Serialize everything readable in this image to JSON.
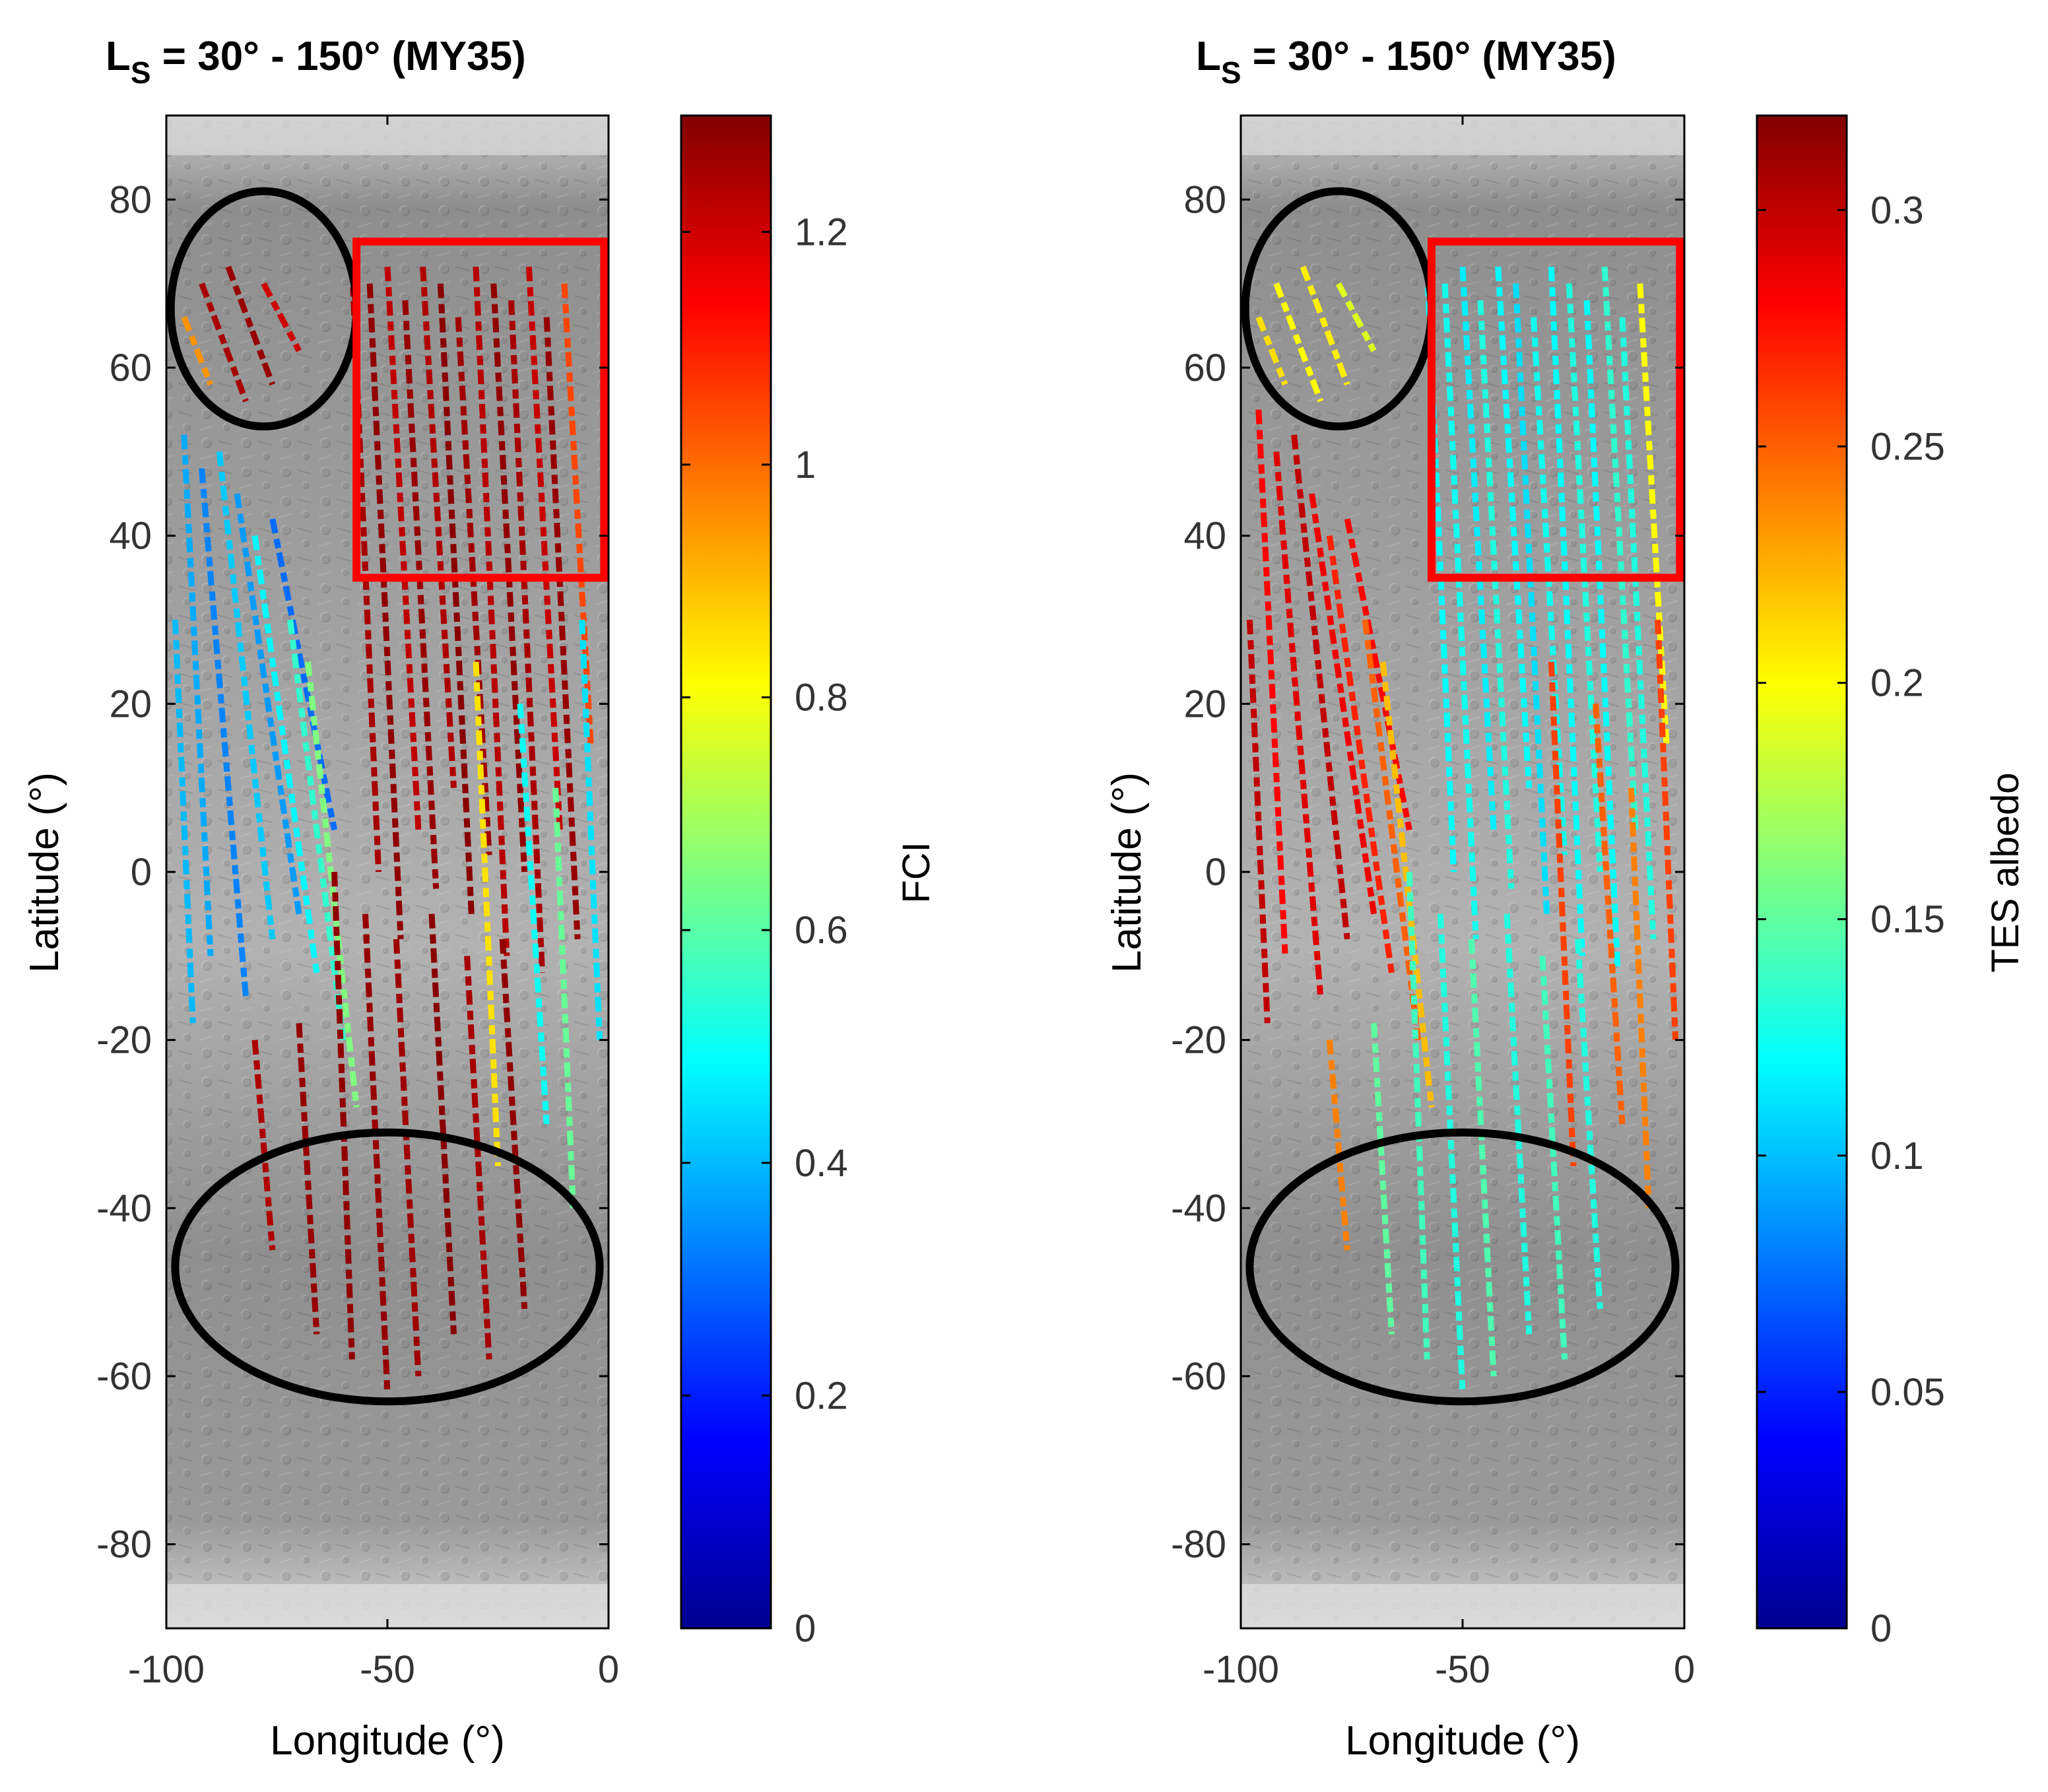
{
  "figure": {
    "panels": [
      {
        "title_prefix": "L",
        "title_sub": "S",
        "title_rest": " = 30° - 150° (MY35)",
        "xlabel": "Longitude (°)",
        "ylabel": "Latitude (°)",
        "colorbar_label": "FCI"
      },
      {
        "title_prefix": "L",
        "title_sub": "S",
        "title_rest": " = 30° - 150° (MY35)",
        "xlabel": "Longitude (°)",
        "ylabel": "Latitude (°)",
        "colorbar_label": "TES albedo"
      }
    ]
  },
  "chart_data": [
    {
      "type": "scatter",
      "title": "LS = 30° - 150° (MY35)",
      "xlabel": "Longitude (°)",
      "ylabel": "Latitude (°)",
      "xlim": [
        -100,
        0
      ],
      "ylim": [
        -90,
        90
      ],
      "x_ticks": [
        -100,
        -50,
        0
      ],
      "y_ticks": [
        80,
        60,
        40,
        20,
        0,
        -20,
        -40,
        -60,
        -80
      ],
      "basemap": "grayscale shaded-relief Mars surface",
      "colorbar": {
        "label": "FCI",
        "range": [
          0,
          1.3
        ],
        "ticks": [
          0,
          0.2,
          0.4,
          0.6,
          0.8,
          1,
          1.2
        ],
        "colormap": "jet"
      },
      "tracks": [
        {
          "lon_start": -96,
          "lat_start": 52,
          "lon_end": -90,
          "lat_end": -10,
          "value": 0.38
        },
        {
          "lon_start": -92,
          "lat_start": 48,
          "lon_end": -82,
          "lat_end": -15,
          "value": 0.33
        },
        {
          "lon_start": -88,
          "lat_start": 50,
          "lon_end": -76,
          "lat_end": -8,
          "value": 0.42
        },
        {
          "lon_start": -84,
          "lat_start": 45,
          "lon_end": -70,
          "lat_end": -5,
          "value": 0.36
        },
        {
          "lon_start": -80,
          "lat_start": 40,
          "lon_end": -66,
          "lat_end": -12,
          "value": 0.48
        },
        {
          "lon_start": -76,
          "lat_start": 42,
          "lon_end": -62,
          "lat_end": 5,
          "value": 0.3
        },
        {
          "lon_start": -72,
          "lat_start": 30,
          "lon_end": -60,
          "lat_end": -20,
          "value": 0.55
        },
        {
          "lon_start": -98,
          "lat_start": 30,
          "lon_end": -94,
          "lat_end": -18,
          "value": 0.4
        },
        {
          "lon_start": -68,
          "lat_start": 25,
          "lon_end": -57,
          "lat_end": -28,
          "value": 0.65
        },
        {
          "lon_start": -58,
          "lat_start": 72,
          "lon_end": -52,
          "lat_end": 0,
          "value": 1.25
        },
        {
          "lon_start": -54,
          "lat_start": 70,
          "lon_end": -47,
          "lat_end": -8,
          "value": 1.28
        },
        {
          "lon_start": -50,
          "lat_start": 72,
          "lon_end": -43,
          "lat_end": 5,
          "value": 1.22
        },
        {
          "lon_start": -46,
          "lat_start": 68,
          "lon_end": -39,
          "lat_end": -2,
          "value": 1.27
        },
        {
          "lon_start": -42,
          "lat_start": 72,
          "lon_end": -35,
          "lat_end": 10,
          "value": 1.24
        },
        {
          "lon_start": -38,
          "lat_start": 70,
          "lon_end": -31,
          "lat_end": -5,
          "value": 1.29
        },
        {
          "lon_start": -34,
          "lat_start": 66,
          "lon_end": -27,
          "lat_end": 2,
          "value": 1.26
        },
        {
          "lon_start": -30,
          "lat_start": 72,
          "lon_end": -23,
          "lat_end": -10,
          "value": 1.23
        },
        {
          "lon_start": -26,
          "lat_start": 70,
          "lon_end": -19,
          "lat_end": 0,
          "value": 1.28
        },
        {
          "lon_start": -22,
          "lat_start": 68,
          "lon_end": -15,
          "lat_end": -12,
          "value": 1.25
        },
        {
          "lon_start": -18,
          "lat_start": 72,
          "lon_end": -11,
          "lat_end": 5,
          "value": 1.21
        },
        {
          "lon_start": -14,
          "lat_start": 66,
          "lon_end": -7,
          "lat_end": -8,
          "value": 1.27
        },
        {
          "lon_start": -10,
          "lat_start": 70,
          "lon_end": -4,
          "lat_end": 15,
          "value": 1.05
        },
        {
          "lon_start": -62,
          "lat_start": 0,
          "lon_end": -58,
          "lat_end": -58,
          "value": 1.28
        },
        {
          "lon_start": -55,
          "lat_start": -5,
          "lon_end": -50,
          "lat_end": -62,
          "value": 1.27
        },
        {
          "lon_start": -48,
          "lat_start": -8,
          "lon_end": -43,
          "lat_end": -60,
          "value": 1.26
        },
        {
          "lon_start": -40,
          "lat_start": -5,
          "lon_end": -35,
          "lat_end": -55,
          "value": 1.29
        },
        {
          "lon_start": -32,
          "lat_start": -10,
          "lon_end": -27,
          "lat_end": -58,
          "value": 1.25
        },
        {
          "lon_start": -24,
          "lat_start": -8,
          "lon_end": -19,
          "lat_end": -52,
          "value": 1.28
        },
        {
          "lon_start": -70,
          "lat_start": -18,
          "lon_end": -66,
          "lat_end": -55,
          "value": 1.27
        },
        {
          "lon_start": -80,
          "lat_start": -20,
          "lon_end": -76,
          "lat_end": -45,
          "value": 1.24
        },
        {
          "lon_start": -92,
          "lat_start": 70,
          "lon_end": -82,
          "lat_end": 56,
          "value": 1.25
        },
        {
          "lon_start": -86,
          "lat_start": 72,
          "lon_end": -76,
          "lat_end": 58,
          "value": 1.27
        },
        {
          "lon_start": -78,
          "lat_start": 70,
          "lon_end": -70,
          "lat_end": 62,
          "value": 1.2
        },
        {
          "lon_start": -96,
          "lat_start": 66,
          "lon_end": -90,
          "lat_end": 58,
          "value": 0.95
        },
        {
          "lon_start": -20,
          "lat_start": 20,
          "lon_end": -14,
          "lat_end": -30,
          "value": 0.5
        },
        {
          "lon_start": -12,
          "lat_start": 10,
          "lon_end": -8,
          "lat_end": -40,
          "value": 0.62
        },
        {
          "lon_start": -6,
          "lat_start": 30,
          "lon_end": -2,
          "lat_end": -20,
          "value": 0.45
        },
        {
          "lon_start": -30,
          "lat_start": 25,
          "lon_end": -25,
          "lat_end": -35,
          "value": 0.85
        }
      ],
      "annotations": [
        {
          "shape": "ellipse",
          "color": "black",
          "center": [
            -78,
            67
          ],
          "half_axes": [
            21,
            14
          ]
        },
        {
          "shape": "rectangle",
          "color": "red",
          "lon": [
            -57,
            -1
          ],
          "lat": [
            35,
            75
          ]
        },
        {
          "shape": "ellipse",
          "color": "black",
          "center": [
            -50,
            -47
          ],
          "half_axes": [
            48,
            16
          ]
        }
      ]
    },
    {
      "type": "scatter",
      "title": "LS = 30° - 150° (MY35)",
      "xlabel": "Longitude (°)",
      "ylabel": "Latitude (°)",
      "xlim": [
        -100,
        0
      ],
      "ylim": [
        -90,
        90
      ],
      "x_ticks": [
        -100,
        -50,
        0
      ],
      "y_ticks": [
        80,
        60,
        40,
        20,
        0,
        -20,
        -40,
        -60,
        -80
      ],
      "basemap": "grayscale shaded-relief Mars surface",
      "colorbar": {
        "label": "TES albedo",
        "range": [
          0,
          0.32
        ],
        "ticks": [
          0,
          0.05,
          0.1,
          0.15,
          0.2,
          0.25,
          0.3
        ],
        "colormap": "jet"
      },
      "tracks": [
        {
          "lon_start": -96,
          "lat_start": 55,
          "lon_end": -90,
          "lat_end": -10,
          "value": 0.28
        },
        {
          "lon_start": -92,
          "lat_start": 50,
          "lon_end": -82,
          "lat_end": -15,
          "value": 0.29
        },
        {
          "lon_start": -88,
          "lat_start": 52,
          "lon_end": -76,
          "lat_end": -8,
          "value": 0.3
        },
        {
          "lon_start": -84,
          "lat_start": 45,
          "lon_end": -70,
          "lat_end": -5,
          "value": 0.285
        },
        {
          "lon_start": -80,
          "lat_start": 40,
          "lon_end": -66,
          "lat_end": -12,
          "value": 0.27
        },
        {
          "lon_start": -76,
          "lat_start": 42,
          "lon_end": -62,
          "lat_end": 5,
          "value": 0.28
        },
        {
          "lon_start": -72,
          "lat_start": 30,
          "lon_end": -60,
          "lat_end": -20,
          "value": 0.25
        },
        {
          "lon_start": -98,
          "lat_start": 30,
          "lon_end": -94,
          "lat_end": -18,
          "value": 0.3
        },
        {
          "lon_start": -68,
          "lat_start": 25,
          "lon_end": -57,
          "lat_end": -28,
          "value": 0.22
        },
        {
          "lon_start": -58,
          "lat_start": 72,
          "lon_end": -52,
          "lat_end": 0,
          "value": 0.12
        },
        {
          "lon_start": -54,
          "lat_start": 70,
          "lon_end": -47,
          "lat_end": -8,
          "value": 0.125
        },
        {
          "lon_start": -50,
          "lat_start": 72,
          "lon_end": -43,
          "lat_end": 5,
          "value": 0.115
        },
        {
          "lon_start": -46,
          "lat_start": 68,
          "lon_end": -39,
          "lat_end": -2,
          "value": 0.13
        },
        {
          "lon_start": -42,
          "lat_start": 72,
          "lon_end": -35,
          "lat_end": 10,
          "value": 0.12
        },
        {
          "lon_start": -38,
          "lat_start": 70,
          "lon_end": -31,
          "lat_end": -5,
          "value": 0.11
        },
        {
          "lon_start": -34,
          "lat_start": 66,
          "lon_end": -27,
          "lat_end": 2,
          "value": 0.125
        },
        {
          "lon_start": -30,
          "lat_start": 72,
          "lon_end": -23,
          "lat_end": -10,
          "value": 0.12
        },
        {
          "lon_start": -26,
          "lat_start": 70,
          "lon_end": -19,
          "lat_end": 0,
          "value": 0.13
        },
        {
          "lon_start": -22,
          "lat_start": 68,
          "lon_end": -15,
          "lat_end": -12,
          "value": 0.12
        },
        {
          "lon_start": -18,
          "lat_start": 72,
          "lon_end": -11,
          "lat_end": 5,
          "value": 0.135
        },
        {
          "lon_start": -14,
          "lat_start": 66,
          "lon_end": -7,
          "lat_end": -8,
          "value": 0.13
        },
        {
          "lon_start": -10,
          "lat_start": 70,
          "lon_end": -4,
          "lat_end": 15,
          "value": 0.2
        },
        {
          "lon_start": -62,
          "lat_start": 0,
          "lon_end": -58,
          "lat_end": -58,
          "value": 0.14
        },
        {
          "lon_start": -55,
          "lat_start": -5,
          "lon_end": -50,
          "lat_end": -62,
          "value": 0.13
        },
        {
          "lon_start": -48,
          "lat_start": -8,
          "lon_end": -43,
          "lat_end": -60,
          "value": 0.145
        },
        {
          "lon_start": -40,
          "lat_start": -5,
          "lon_end": -35,
          "lat_end": -55,
          "value": 0.13
        },
        {
          "lon_start": -32,
          "lat_start": -10,
          "lon_end": -27,
          "lat_end": -58,
          "value": 0.14
        },
        {
          "lon_start": -24,
          "lat_start": -8,
          "lon_end": -19,
          "lat_end": -52,
          "value": 0.13
        },
        {
          "lon_start": -70,
          "lat_start": -18,
          "lon_end": -66,
          "lat_end": -55,
          "value": 0.15
        },
        {
          "lon_start": -80,
          "lat_start": -20,
          "lon_end": -76,
          "lat_end": -45,
          "value": 0.24
        },
        {
          "lon_start": -92,
          "lat_start": 70,
          "lon_end": -82,
          "lat_end": 56,
          "value": 0.2
        },
        {
          "lon_start": -86,
          "lat_start": 72,
          "lon_end": -76,
          "lat_end": 58,
          "value": 0.205
        },
        {
          "lon_start": -78,
          "lat_start": 70,
          "lon_end": -70,
          "lat_end": 62,
          "value": 0.19
        },
        {
          "lon_start": -96,
          "lat_start": 66,
          "lon_end": -90,
          "lat_end": 58,
          "value": 0.21
        },
        {
          "lon_start": -20,
          "lat_start": 20,
          "lon_end": -14,
          "lat_end": -30,
          "value": 0.25
        },
        {
          "lon_start": -12,
          "lat_start": 10,
          "lon_end": -8,
          "lat_end": -40,
          "value": 0.24
        },
        {
          "lon_start": -6,
          "lat_start": 30,
          "lon_end": -2,
          "lat_end": -20,
          "value": 0.26
        },
        {
          "lon_start": -30,
          "lat_start": 25,
          "lon_end": -25,
          "lat_end": -35,
          "value": 0.26
        }
      ],
      "annotations": [
        {
          "shape": "ellipse",
          "color": "black",
          "center": [
            -78,
            67
          ],
          "half_axes": [
            21,
            14
          ]
        },
        {
          "shape": "rectangle",
          "color": "red",
          "lon": [
            -57,
            -1
          ],
          "lat": [
            35,
            75
          ]
        },
        {
          "shape": "ellipse",
          "color": "black",
          "center": [
            -50,
            -47
          ],
          "half_axes": [
            48,
            16
          ]
        }
      ]
    }
  ]
}
